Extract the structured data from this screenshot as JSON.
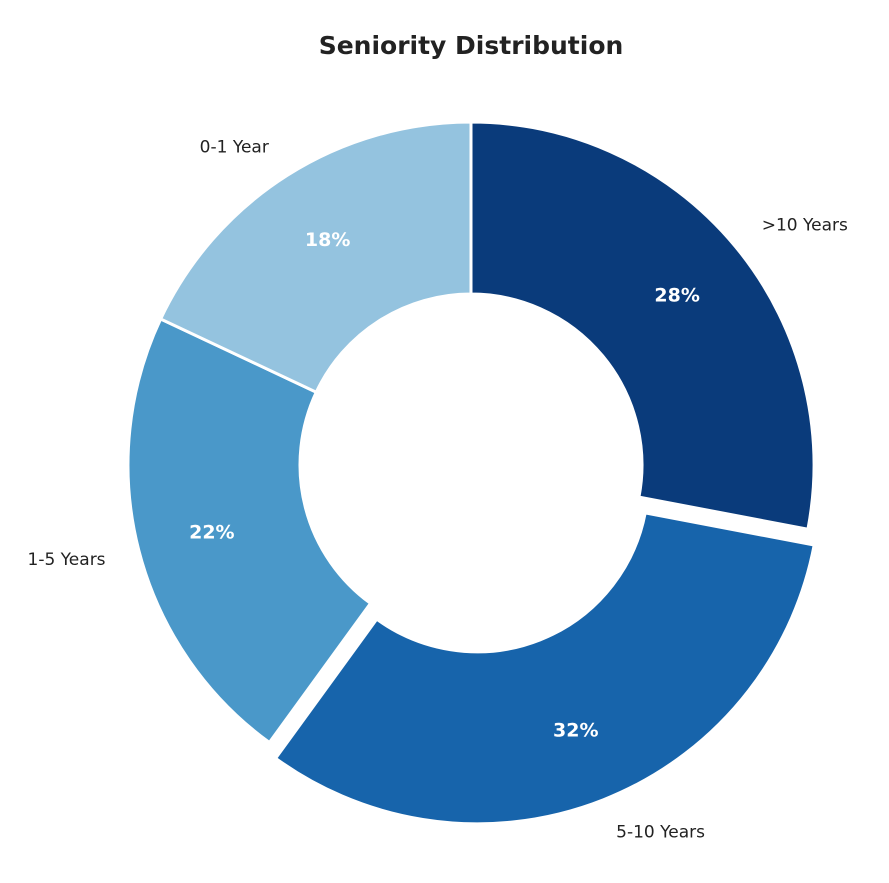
{
  "chart_data": {
    "type": "pie",
    "variant": "donut",
    "title": "Seniority Distribution",
    "categories": [
      ">10 Years",
      "5-10 Years",
      "1-5 Years",
      "0-1 Year"
    ],
    "values": [
      28,
      32,
      22,
      18
    ],
    "value_labels": [
      "28%",
      "32%",
      "22%",
      "18%"
    ],
    "colors": [
      "#0a3b7b",
      "#1764ab",
      "#4a98c9",
      "#94c3df"
    ],
    "exploded": [
      "5-10 Years"
    ],
    "start": "top",
    "direction": "clockwise"
  }
}
